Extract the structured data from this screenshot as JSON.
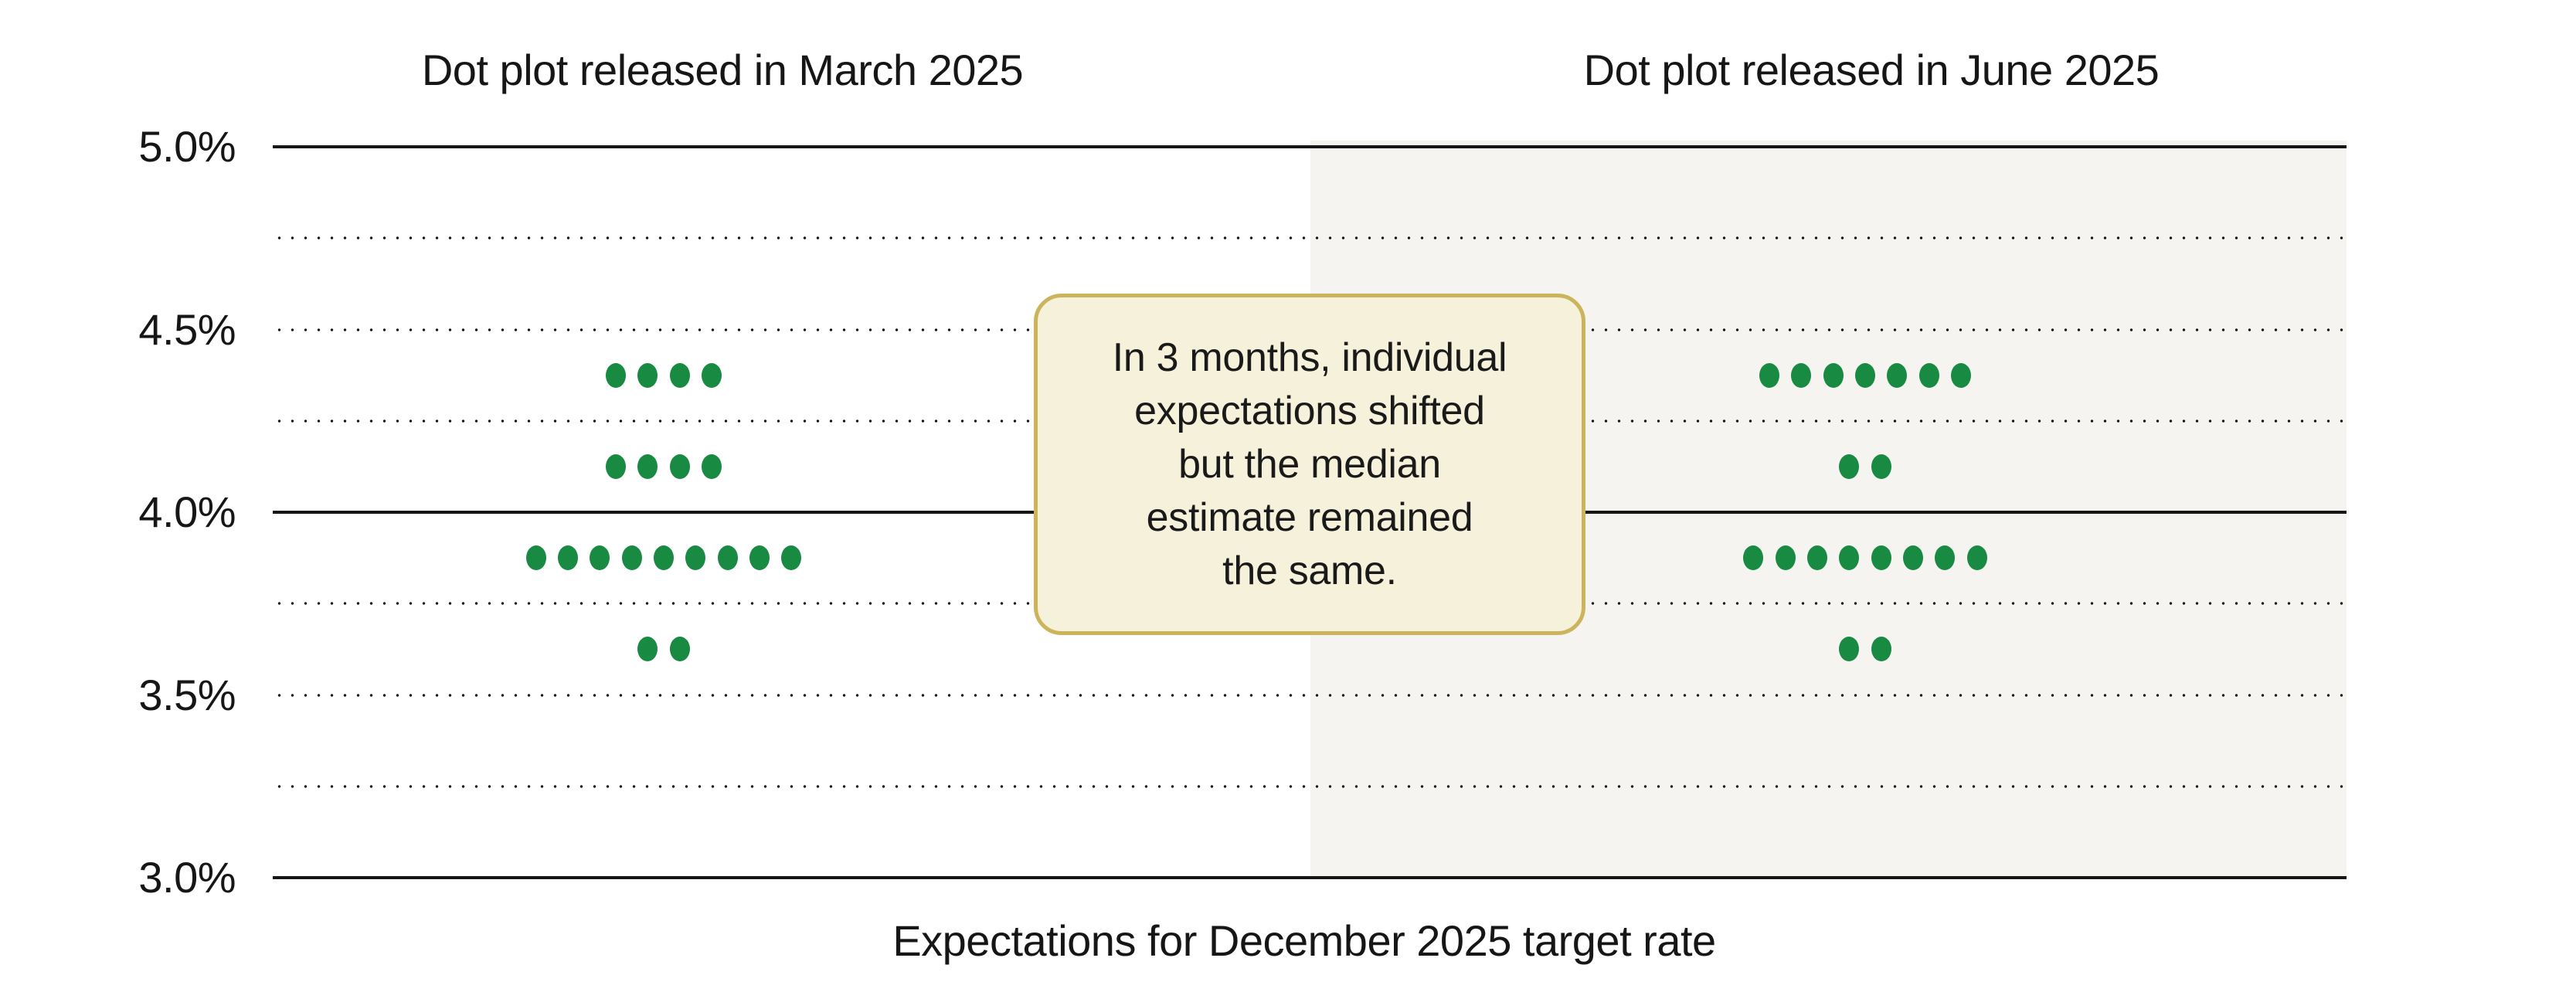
{
  "titles": {
    "left": "Dot plot released in March 2025",
    "right": "Dot plot released in June 2025"
  },
  "callout": {
    "text": "In 3 months, individual\nexpectations shifted\nbut the median\nestimate remained\nthe same."
  },
  "xlabel": "Expectations for December 2025 target rate",
  "colors": {
    "dot_green": "#188a42",
    "panel_gray": "#f5f4f1",
    "callout_fill": "#f6f1da",
    "callout_border": "#ccb45c",
    "line": "#161616"
  },
  "grid": {
    "lines": [
      {
        "rate": 5.0,
        "style": "solid",
        "label": "5.0%"
      },
      {
        "rate": 4.75,
        "style": "dotted"
      },
      {
        "rate": 4.5,
        "style": "dotted",
        "label": "4.5%"
      },
      {
        "rate": 4.25,
        "style": "dotted"
      },
      {
        "rate": 4.0,
        "style": "solid",
        "label": "4.0%"
      },
      {
        "rate": 3.75,
        "style": "dotted"
      },
      {
        "rate": 3.5,
        "style": "dotted",
        "label": "3.5%"
      },
      {
        "rate": 3.25,
        "style": "dotted"
      },
      {
        "rate": 3.0,
        "style": "solid",
        "label": "3.0%"
      }
    ]
  },
  "chart_data": {
    "type": "scatter",
    "subtype": "fomc-dot-plot",
    "xlabel": "Expectations for December 2025 target rate",
    "ylim": [
      3.0,
      5.0
    ],
    "y_ticks": [
      "5.0%",
      "4.5%",
      "4.0%",
      "3.5%",
      "3.0%"
    ],
    "solid_gridlines": [
      5.0,
      4.0,
      3.0
    ],
    "dotted_gridlines": [
      4.75,
      4.5,
      4.25,
      3.75,
      3.5,
      3.25
    ],
    "legend_position": "none",
    "annotation": "In 3 months, individual expectations shifted but the median estimate remained the same.",
    "panels": [
      {
        "title": "Dot plot released in March 2025",
        "dots": [
          {
            "rate": 4.375,
            "count": 4
          },
          {
            "rate": 4.125,
            "count": 4
          },
          {
            "rate": 3.875,
            "count": 9
          },
          {
            "rate": 3.625,
            "count": 2
          }
        ]
      },
      {
        "title": "Dot plot released in June 2025",
        "dots": [
          {
            "rate": 4.375,
            "count": 7
          },
          {
            "rate": 4.125,
            "count": 2
          },
          {
            "rate": 3.875,
            "count": 8
          },
          {
            "rate": 3.625,
            "count": 2
          }
        ]
      }
    ]
  }
}
